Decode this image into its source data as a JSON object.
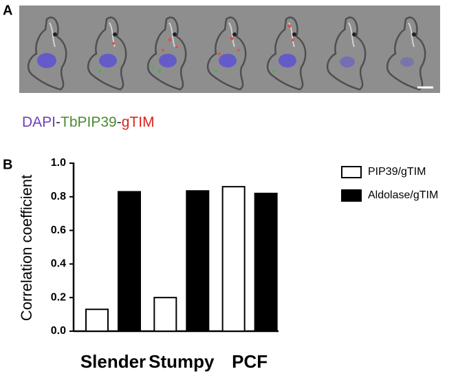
{
  "panel_labels": [
    "A",
    "B"
  ],
  "stain_label": [
    {
      "text": "DAPI",
      "color": "#6b3fb8"
    },
    {
      "text": "-",
      "color": "#333333"
    },
    {
      "text": "TbPIP39",
      "color": "#4c8a2e"
    },
    {
      "text": "-",
      "color": "#333333"
    },
    {
      "text": "gTIM",
      "color": "#e0201b"
    }
  ],
  "chart_data": {
    "type": "bar",
    "y_label": "Correlation coefficient",
    "categories": [
      "Slender",
      "Stumpy",
      "PCF"
    ],
    "series": [
      {
        "name": "PIP39/gTIM",
        "color": "#ffffff",
        "values": [
          0.13,
          0.2,
          0.86
        ]
      },
      {
        "name": "Aldolase/gTIM",
        "color": "#000000",
        "values": [
          0.83,
          0.835,
          0.82
        ]
      }
    ],
    "ylim": [
      0,
      1
    ],
    "yticks": [
      {
        "value": 0,
        "label": "0.0"
      },
      0.2,
      0.4,
      0.6,
      0.8,
      {
        "value": 1,
        "label": "1.0"
      }
    ],
    "legend": "right"
  }
}
